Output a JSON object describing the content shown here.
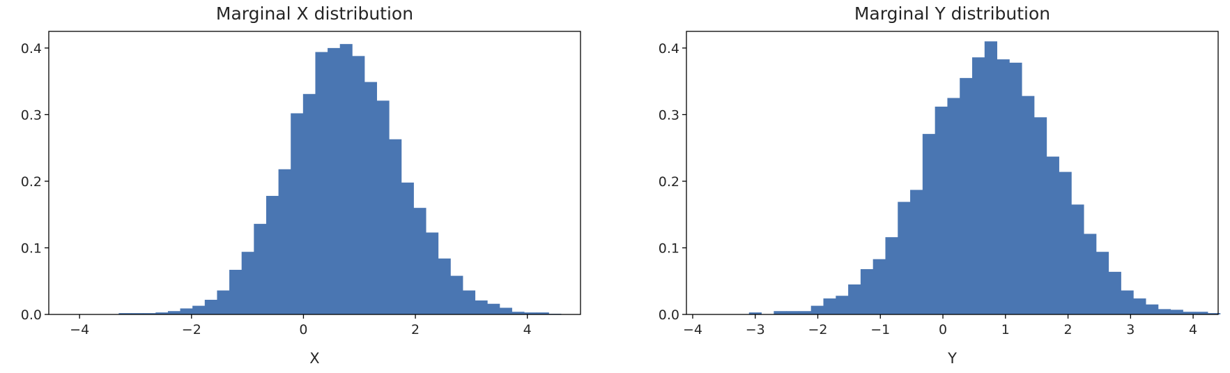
{
  "chart_data": [
    {
      "type": "bar",
      "title": "Marginal X distribution",
      "xlabel": "X",
      "ylabel": "",
      "xlim": [
        -4.55,
        4.95
      ],
      "ylim": [
        0,
        0.425
      ],
      "xticks": [
        -4,
        -2,
        0,
        2,
        4
      ],
      "xtick_labels": [
        "−4",
        "−2",
        "0",
        "2",
        "4"
      ],
      "yticks": [
        0.0,
        0.1,
        0.2,
        0.3,
        0.4
      ],
      "ytick_labels": [
        "0.0",
        "0.1",
        "0.2",
        "0.3",
        "0.4"
      ],
      "bin_start": -3.3,
      "bin_width": 0.2195,
      "values": [
        0.002,
        0.002,
        0.002,
        0.003,
        0.005,
        0.009,
        0.013,
        0.022,
        0.036,
        0.067,
        0.094,
        0.136,
        0.178,
        0.218,
        0.302,
        0.331,
        0.394,
        0.4,
        0.406,
        0.388,
        0.349,
        0.321,
        0.263,
        0.198,
        0.16,
        0.123,
        0.084,
        0.058,
        0.036,
        0.021,
        0.016,
        0.01,
        0.004,
        0.003,
        0.003,
        0.001
      ]
    },
    {
      "type": "bar",
      "title": "Marginal Y distribution",
      "xlabel": "Y",
      "ylabel": "",
      "xlim": [
        -4.1,
        4.4
      ],
      "ylim": [
        0,
        0.425
      ],
      "xticks": [
        -4,
        -3,
        -2,
        -1,
        0,
        1,
        2,
        3,
        4
      ],
      "xtick_labels": [
        "−4",
        "−3",
        "−2",
        "−1",
        "0",
        "1",
        "2",
        "3",
        "4"
      ],
      "yticks": [
        0.0,
        0.1,
        0.2,
        0.3,
        0.4
      ],
      "ytick_labels": [
        "0.0",
        "0.1",
        "0.2",
        "0.3",
        "0.4"
      ],
      "bin_start": -3.1,
      "bin_width": 0.1982,
      "values": [
        0.003,
        0.0,
        0.005,
        0.005,
        0.005,
        0.013,
        0.024,
        0.028,
        0.045,
        0.068,
        0.083,
        0.116,
        0.169,
        0.187,
        0.271,
        0.312,
        0.325,
        0.355,
        0.386,
        0.41,
        0.383,
        0.378,
        0.328,
        0.296,
        0.237,
        0.214,
        0.165,
        0.121,
        0.094,
        0.064,
        0.036,
        0.024,
        0.015,
        0.008,
        0.007,
        0.004,
        0.004,
        0.002
      ]
    }
  ]
}
